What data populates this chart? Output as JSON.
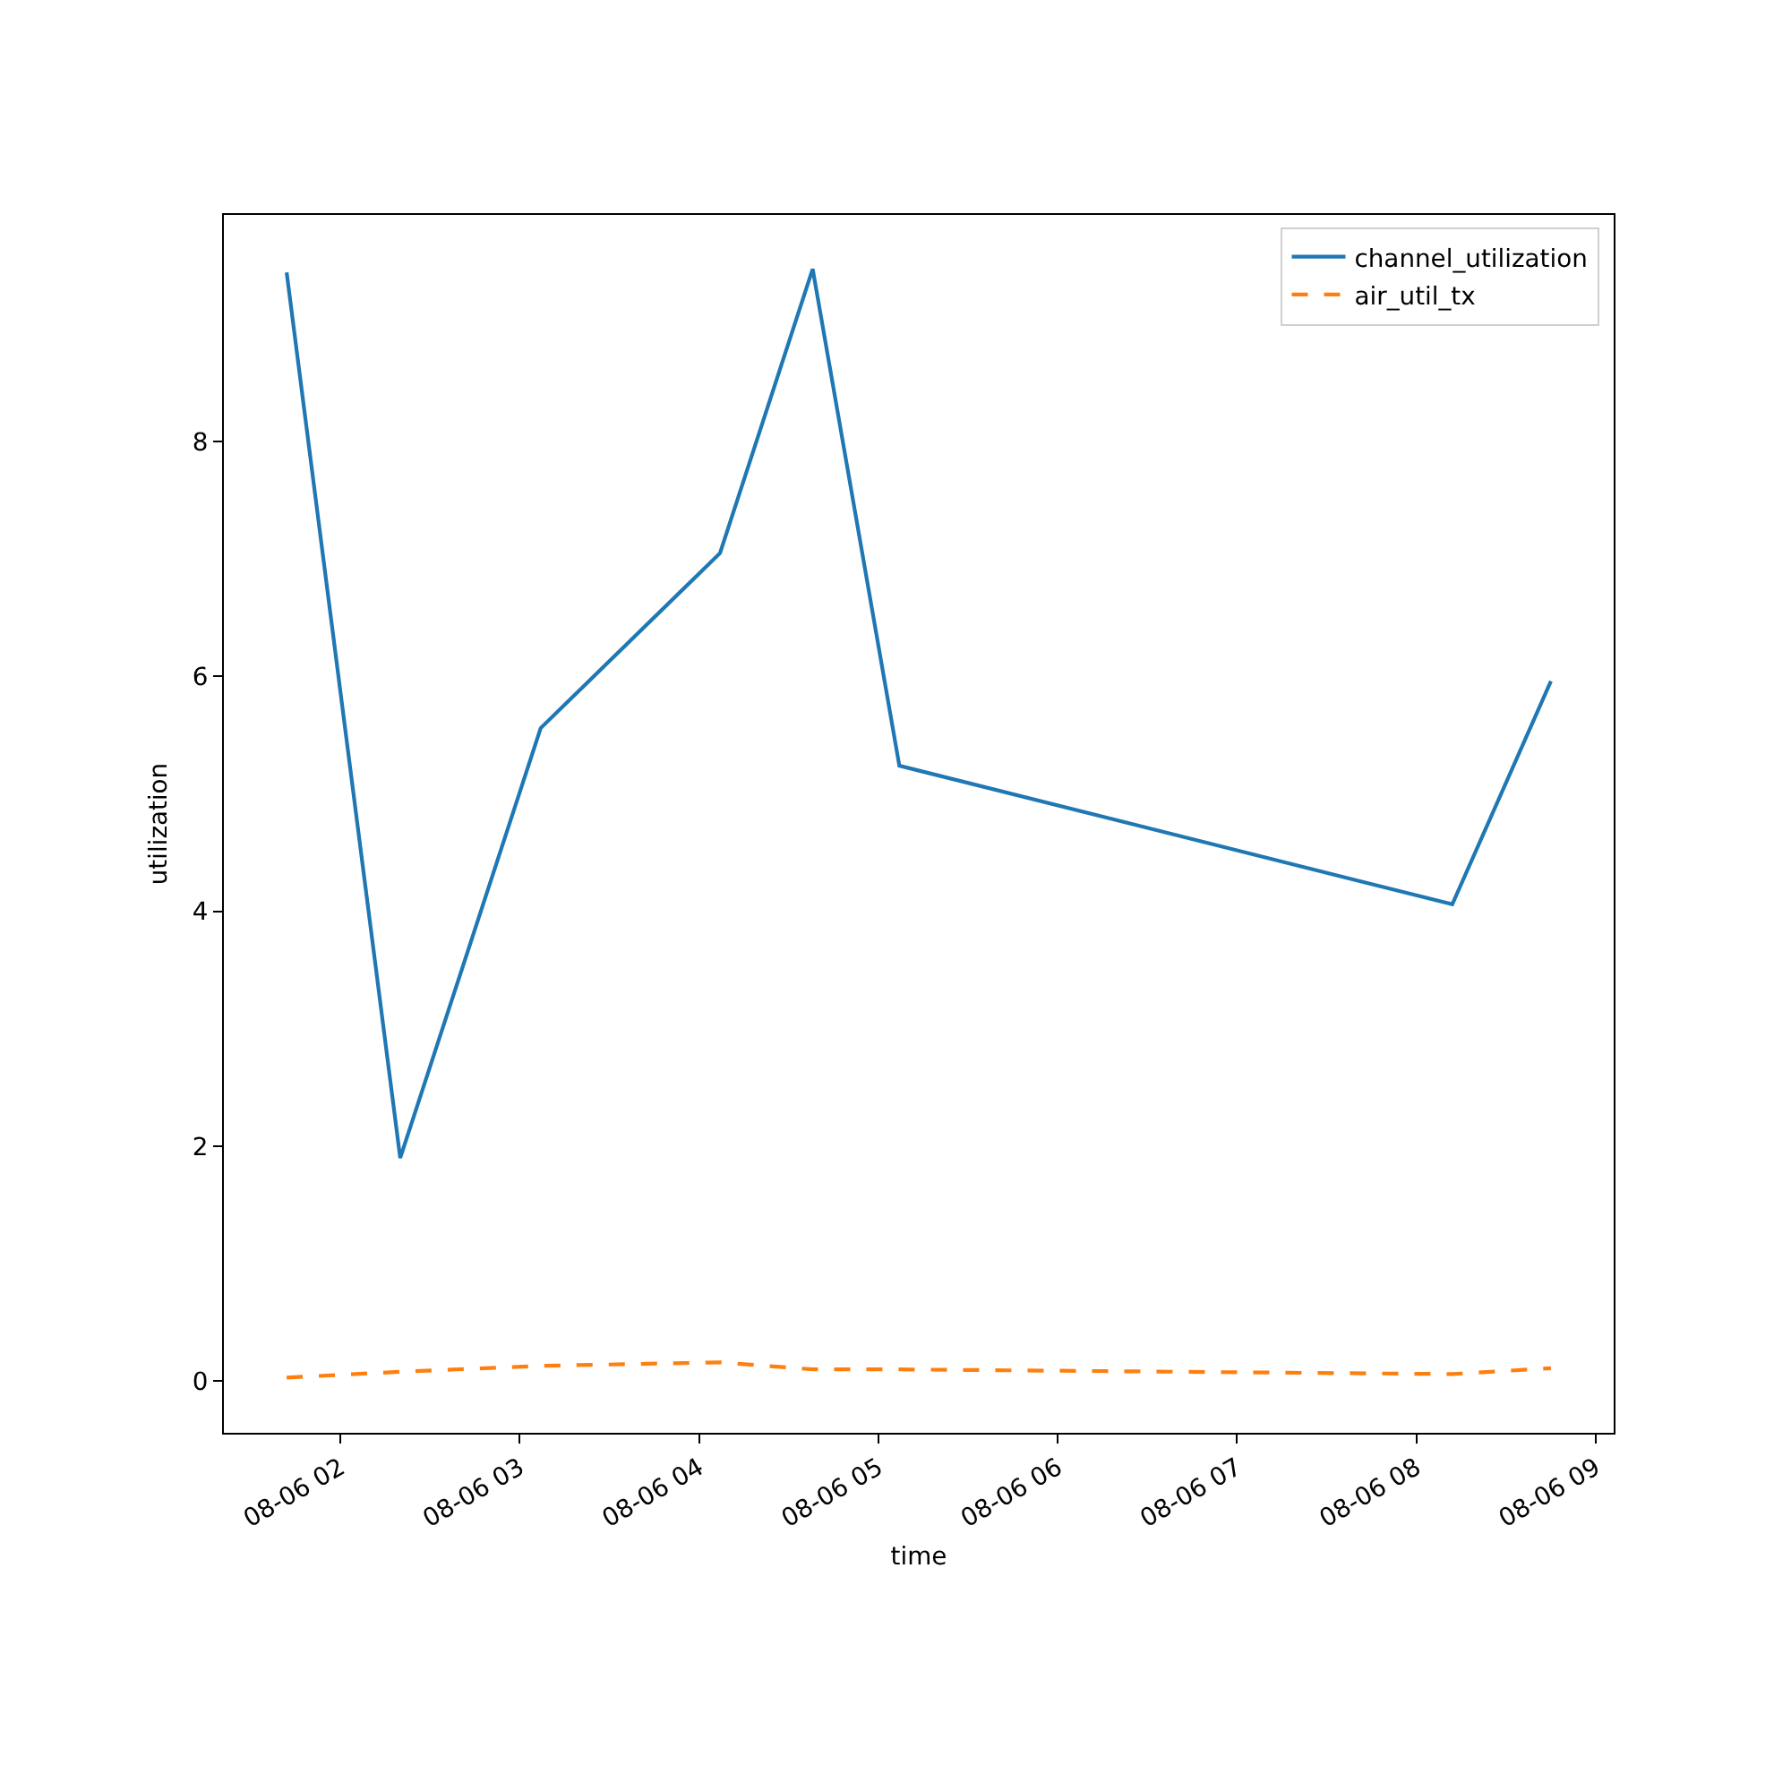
{
  "chart_data": {
    "type": "line",
    "xlabel": "time",
    "ylabel": "utilization",
    "x": [
      "--08-06T01:42",
      "--08-06T02:20",
      "--08-06T03:07",
      "--08-06T04:07",
      "--08-06T04:38",
      "--08-06T05:07",
      "--08-06T08:12",
      "--08-06T08:45"
    ],
    "series": [
      {
        "name": "channel_utilization",
        "color": "#1f77b4",
        "line_style": "solid",
        "values": [
          9.44,
          1.9,
          5.56,
          7.05,
          9.47,
          5.24,
          4.06,
          5.96
        ]
      },
      {
        "name": "air_util_tx",
        "color": "#ff7f0e",
        "line_style": "dashed",
        "values": [
          0.03,
          0.08,
          0.13,
          0.16,
          0.1,
          0.1,
          0.06,
          0.11
        ]
      }
    ],
    "xlim": [
      "--08-06T01:21",
      "--08-06T09:06"
    ],
    "ylim": [
      -0.44,
      9.93
    ],
    "xticks": [
      {
        "value": "--08-06T02:00",
        "label": "08-06 02"
      },
      {
        "value": "--08-06T03:00",
        "label": "08-06 03"
      },
      {
        "value": "--08-06T04:00",
        "label": "08-06 04"
      },
      {
        "value": "--08-06T05:00",
        "label": "08-06 05"
      },
      {
        "value": "--08-06T06:00",
        "label": "08-06 06"
      },
      {
        "value": "--08-06T07:00",
        "label": "08-06 07"
      },
      {
        "value": "--08-06T08:00",
        "label": "08-06 08"
      },
      {
        "value": "--08-06T09:00",
        "label": "08-06 09"
      }
    ],
    "yticks": [
      0,
      2,
      4,
      6,
      8
    ],
    "legend": "top right"
  }
}
